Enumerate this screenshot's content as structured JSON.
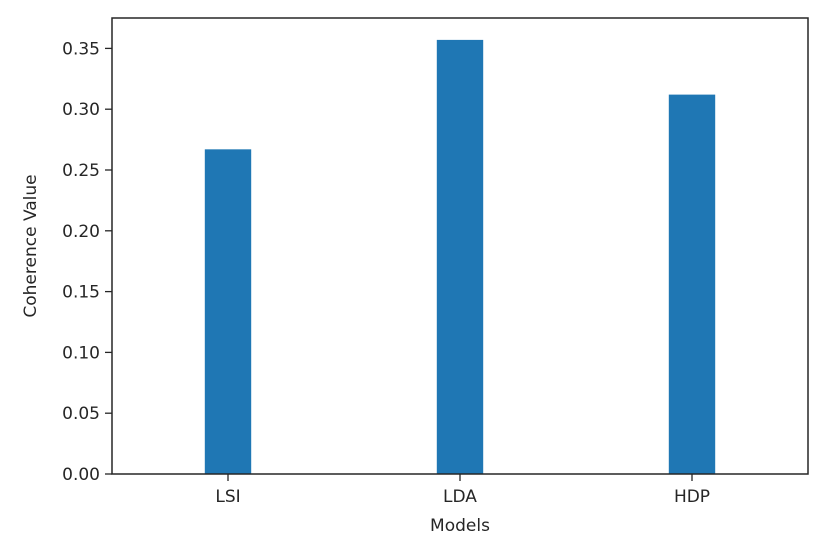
{
  "chart_data": {
    "type": "bar",
    "title": "",
    "xlabel": "Models",
    "ylabel": "Coherence Value",
    "categories": [
      "LSI",
      "LDA",
      "HDP"
    ],
    "values": [
      0.267,
      0.357,
      0.312
    ],
    "ylim": [
      0,
      0.375
    ],
    "yticks": [
      0.0,
      0.05,
      0.1,
      0.15,
      0.2,
      0.25,
      0.3,
      0.35
    ],
    "ytick_labels": [
      "0.00",
      "0.05",
      "0.10",
      "0.15",
      "0.20",
      "0.25",
      "0.30",
      "0.35"
    ],
    "bar_color": "#1f77b4",
    "grid": false,
    "legend": "none"
  }
}
